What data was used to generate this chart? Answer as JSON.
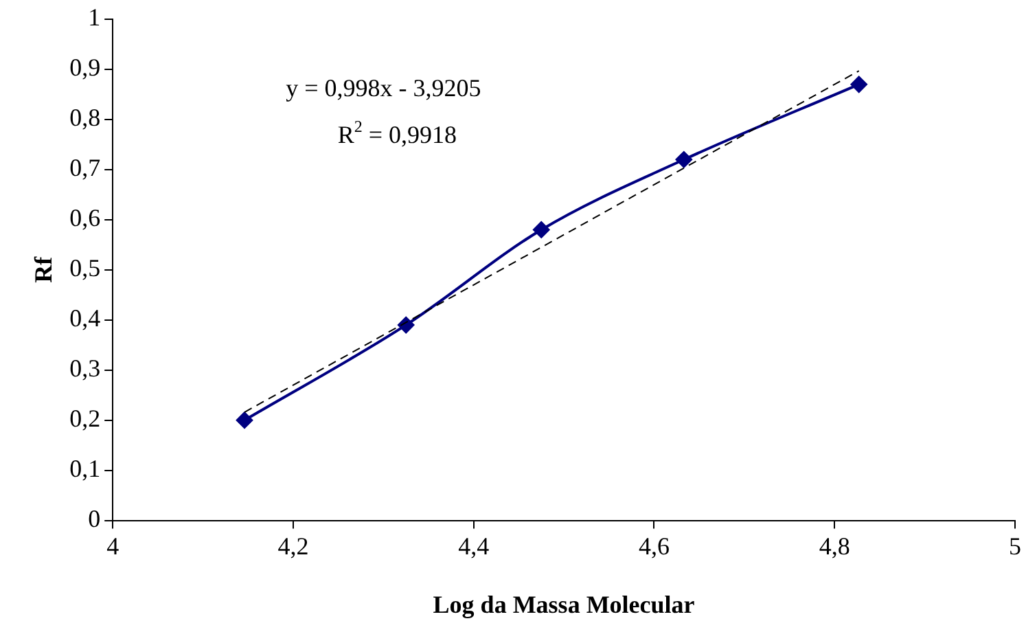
{
  "chart_data": {
    "type": "line",
    "xlabel": "Log da Massa Molecular",
    "ylabel": "Rf",
    "x": [
      4.146,
      4.325,
      4.475,
      4.633,
      4.827
    ],
    "series": [
      {
        "color": "#000080",
        "values": [
          0.2,
          0.39,
          0.58,
          0.72,
          0.87
        ],
        "marker": "diamond",
        "line_style": "solid"
      },
      {
        "type": "line",
        "color": "#000000",
        "x": [
          4.146,
          4.827
        ],
        "values": [
          0.216,
          0.897
        ],
        "marker": "none",
        "line_style": "dashed"
      }
    ],
    "xlim": [
      4,
      5
    ],
    "xticks": [
      4,
      {
        "value": 4.2,
        "label": "4,2"
      },
      {
        "value": 4.4,
        "label": "4,4"
      },
      {
        "value": 4.6,
        "label": "4,6"
      },
      {
        "value": 4.8,
        "label": "4,8"
      },
      5
    ],
    "ylim": [
      0,
      1
    ],
    "yticks": [
      0,
      {
        "value": 0.1,
        "label": "0,1"
      },
      {
        "value": 0.2,
        "label": "0,2"
      },
      {
        "value": 0.3,
        "label": "0,3"
      },
      {
        "value": 0.4,
        "label": "0,4"
      },
      {
        "value": 0.5,
        "label": "0,5"
      },
      {
        "value": 0.6,
        "label": "0,6"
      },
      {
        "value": 0.7,
        "label": "0,7"
      },
      {
        "value": 0.8,
        "label": "0,8"
      },
      {
        "value": 0.9,
        "label": "0,9"
      },
      1
    ],
    "annotations": [
      "y = 0,998x - 3,9205",
      "R$^{2}$ = 0,9918"
    ],
    "grid": false,
    "legend": false
  }
}
